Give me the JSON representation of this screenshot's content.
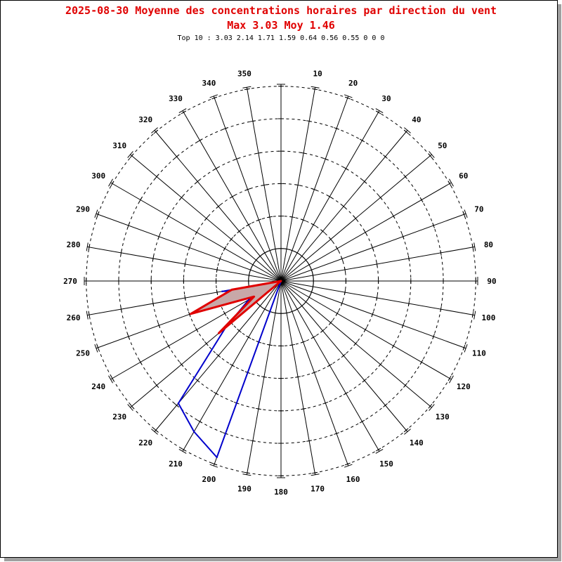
{
  "header": {
    "title_line1": "2025-08-30 Moyenne des concentrations horaires par direction du vent",
    "title_line2": "Max 3.03 Moy 1.46",
    "subtitle": "Top 10 : 3.03 2.14 1.71 1.59 0.64 0.56 0.55 0 0 0"
  },
  "chart_data": {
    "type": "polar",
    "title": "2025-08-30 Moyenne des concentrations horaires par direction du vent",
    "subtitle": "Max 3.03 Moy 1.46",
    "direction_labels": [
      10,
      20,
      30,
      40,
      50,
      60,
      70,
      80,
      90,
      100,
      110,
      120,
      130,
      140,
      150,
      160,
      170,
      180,
      190,
      200,
      210,
      220,
      230,
      240,
      250,
      260,
      270,
      280,
      290,
      300,
      310,
      320,
      330,
      340,
      350
    ],
    "radial_max": 3.03,
    "circles": [
      0.5,
      1.0,
      1.5,
      2.0,
      2.5,
      3.0
    ],
    "series": [
      {
        "name": "",
        "color": "#0000cc",
        "points": [
          {
            "dir": 200,
            "value": 2.89
          },
          {
            "dir": 210,
            "value": 2.68
          },
          {
            "dir": 220,
            "value": 2.46
          },
          {
            "dir": 230,
            "value": 1.11
          },
          {
            "dir": 240,
            "value": 0.57
          },
          {
            "dir": 250,
            "value": 0.4
          },
          {
            "dir": 260,
            "value": 0.92
          }
        ]
      },
      {
        "name": "",
        "color": "#e00000",
        "fill": "#c8a8a8",
        "points": [
          {
            "dir": 230,
            "value": 1.25
          },
          {
            "dir": 240,
            "value": 0.48
          },
          {
            "dir": 250,
            "value": 1.48
          },
          {
            "dir": 260,
            "value": 0.77
          }
        ]
      }
    ]
  }
}
